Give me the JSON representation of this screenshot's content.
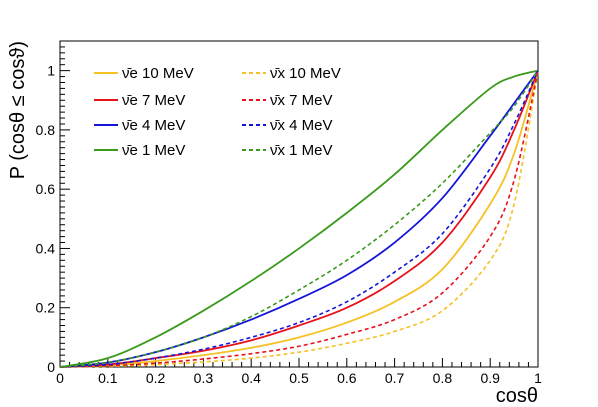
{
  "chart_data": {
    "type": "line",
    "xlabel": "cosθ",
    "ylabel": "P (cosθ ≤ cosϑ)",
    "xlim": [
      0,
      1
    ],
    "ylim": [
      0,
      1.1
    ],
    "x_ticks": [
      "0",
      "0.1",
      "0.2",
      "0.3",
      "0.4",
      "0.5",
      "0.6",
      "0.7",
      "0.8",
      "0.9",
      "1"
    ],
    "y_ticks": [
      "0",
      "0.2",
      "0.4",
      "0.6",
      "0.8",
      "1"
    ],
    "grid": false,
    "legend_placement": "top-left",
    "x": [
      0,
      0.1,
      0.2,
      0.3,
      0.4,
      0.5,
      0.6,
      0.7,
      0.8,
      0.9,
      0.95,
      1.0
    ],
    "series": [
      {
        "name": "ν̄e 10 MeV",
        "color": "#f5c125",
        "dash": false,
        "values": [
          0,
          0.005,
          0.02,
          0.04,
          0.065,
          0.1,
          0.15,
          0.22,
          0.33,
          0.55,
          0.72,
          1.0
        ]
      },
      {
        "name": "ν̄e 7 MeV",
        "color": "#e8111b",
        "dash": false,
        "values": [
          0,
          0.008,
          0.03,
          0.055,
          0.09,
          0.14,
          0.2,
          0.29,
          0.42,
          0.64,
          0.8,
          1.0
        ]
      },
      {
        "name": "ν̄e 4 MeV",
        "color": "#1414d8",
        "dash": false,
        "values": [
          0,
          0.015,
          0.05,
          0.1,
          0.16,
          0.23,
          0.31,
          0.42,
          0.57,
          0.78,
          0.89,
          1.0
        ]
      },
      {
        "name": "ν̄e 1 MeV",
        "color": "#3a9a1c",
        "dash": false,
        "values": [
          0,
          0.03,
          0.1,
          0.19,
          0.29,
          0.4,
          0.52,
          0.65,
          0.8,
          0.94,
          0.98,
          1.0
        ]
      },
      {
        "name": "ν̄x 10 MeV",
        "color": "#f5c125",
        "dash": true,
        "values": [
          0,
          0.002,
          0.008,
          0.017,
          0.03,
          0.05,
          0.08,
          0.12,
          0.19,
          0.36,
          0.55,
          1.0
        ]
      },
      {
        "name": "ν̄x 7 MeV",
        "color": "#e8111b",
        "dash": true,
        "values": [
          0,
          0.004,
          0.013,
          0.027,
          0.045,
          0.07,
          0.11,
          0.16,
          0.25,
          0.44,
          0.63,
          1.0
        ]
      },
      {
        "name": "ν̄x 4 MeV",
        "color": "#1414d8",
        "dash": true,
        "values": [
          0,
          0.008,
          0.03,
          0.06,
          0.1,
          0.15,
          0.22,
          0.32,
          0.45,
          0.67,
          0.82,
          1.0
        ]
      },
      {
        "name": "ν̄x 1 MeV",
        "color": "#3a9a1c",
        "dash": true,
        "values": [
          0,
          0.015,
          0.05,
          0.1,
          0.17,
          0.26,
          0.36,
          0.48,
          0.62,
          0.79,
          0.88,
          1.0
        ]
      }
    ]
  }
}
